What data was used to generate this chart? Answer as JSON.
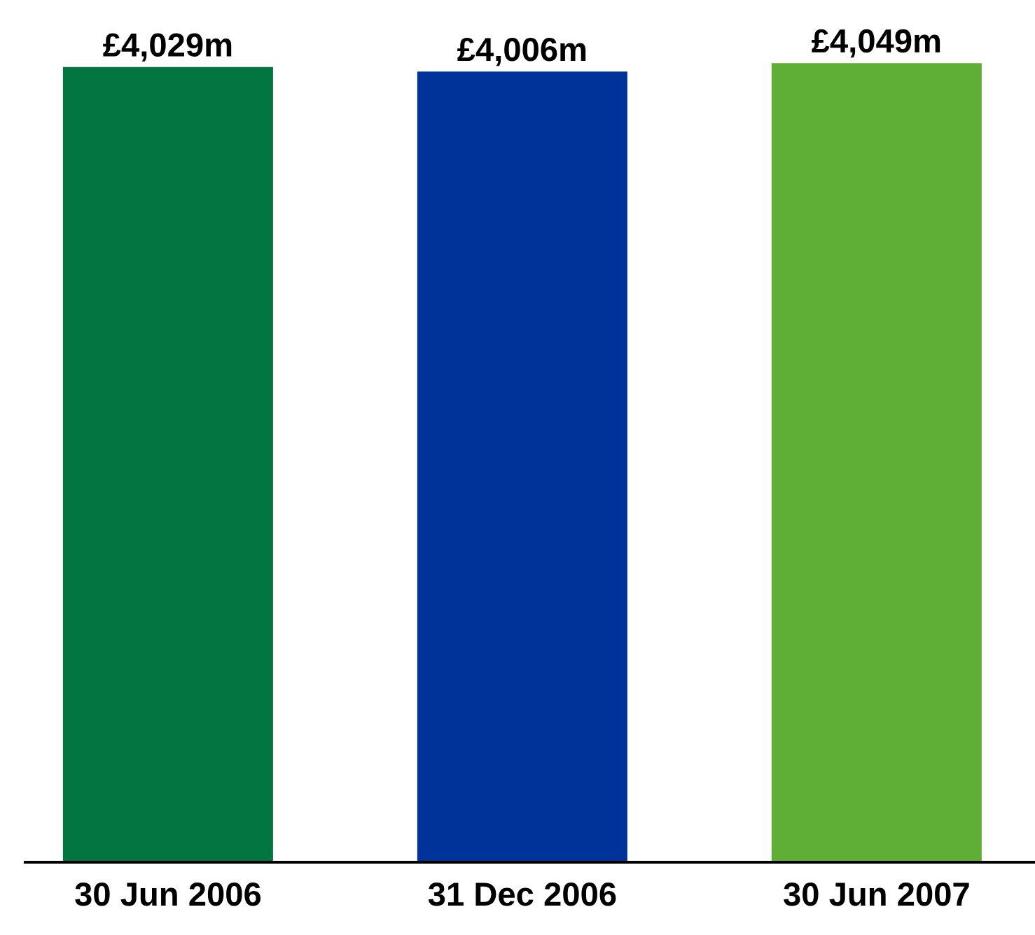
{
  "chart_data": {
    "type": "bar",
    "categories": [
      "30 Jun 2006",
      "31 Dec 2006",
      "30 Jun 2007"
    ],
    "values": [
      4029,
      4006,
      4049
    ],
    "colors": [
      "#037540",
      "#003399",
      "#5fae36"
    ],
    "value_labels": [
      "£4,029m",
      "£4,006m",
      "£4,049m"
    ],
    "grid": false,
    "legend": false
  }
}
